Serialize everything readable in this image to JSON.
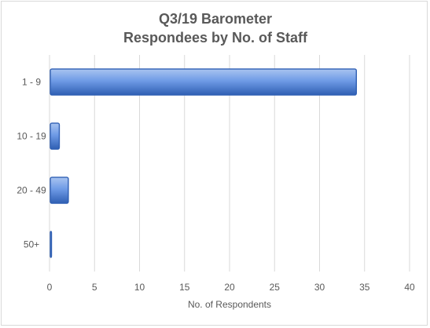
{
  "chart_data": {
    "type": "bar",
    "orientation": "horizontal",
    "title_line1": "Q3/19 Barometer",
    "title_line2": "Respondees by No. of Staff",
    "xlabel": "No. of Respondents",
    "ylabel": "",
    "categories": [
      "1 - 9",
      "10 - 19",
      "20 - 49",
      "50+"
    ],
    "values": [
      34,
      1,
      2,
      0
    ],
    "xlim": [
      0,
      40
    ],
    "x_ticks": [
      "0",
      "5",
      "10",
      "15",
      "20",
      "25",
      "30",
      "35",
      "40"
    ],
    "grid": "vertical",
    "legend": "none",
    "colors": {
      "bar_light": "#a9c4f0",
      "bar_mid": "#6f9be6",
      "bar_dark": "#2f5fb3",
      "gridline": "#d9d9d9",
      "text": "#595959"
    }
  }
}
